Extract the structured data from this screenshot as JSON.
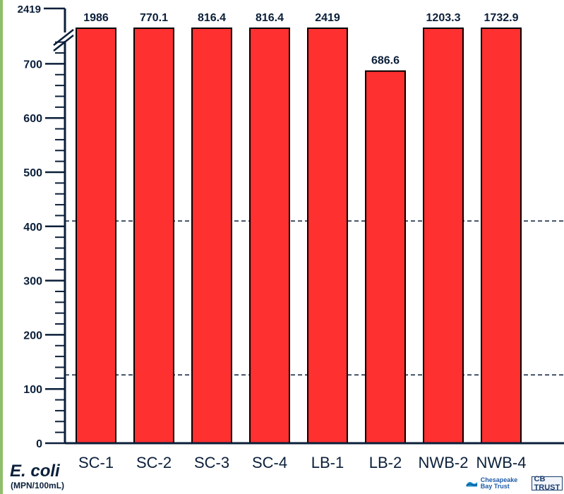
{
  "chart_data": {
    "type": "bar",
    "categories": [
      "SC-1",
      "SC-2",
      "SC-3",
      "SC-4",
      "LB-1",
      "LB-2",
      "NWB-2",
      "NWB-4"
    ],
    "values": [
      1986,
      770.1,
      816.4,
      816.4,
      2419,
      686.6,
      1203.3,
      1732.9
    ],
    "data_labels": [
      "1986",
      "770.1",
      "816.4",
      "816.4",
      "2419",
      "686.6",
      "1203.3",
      "1732.9"
    ],
    "ylabel": "E. coli",
    "yunit": "(MPN/100mL)",
    "yticks": [
      0,
      100,
      200,
      300,
      400,
      500,
      600,
      700
    ],
    "ybreak_top_label": "2419",
    "ylim": [
      0,
      2419
    ],
    "axis_break": true,
    "reference_lines": [
      410,
      126
    ],
    "bar_color": "#ff3030",
    "grid": false
  },
  "logos": {
    "chesapeake": "Chesapeake Bay Trust",
    "cbtrust": "CB TRUST"
  }
}
